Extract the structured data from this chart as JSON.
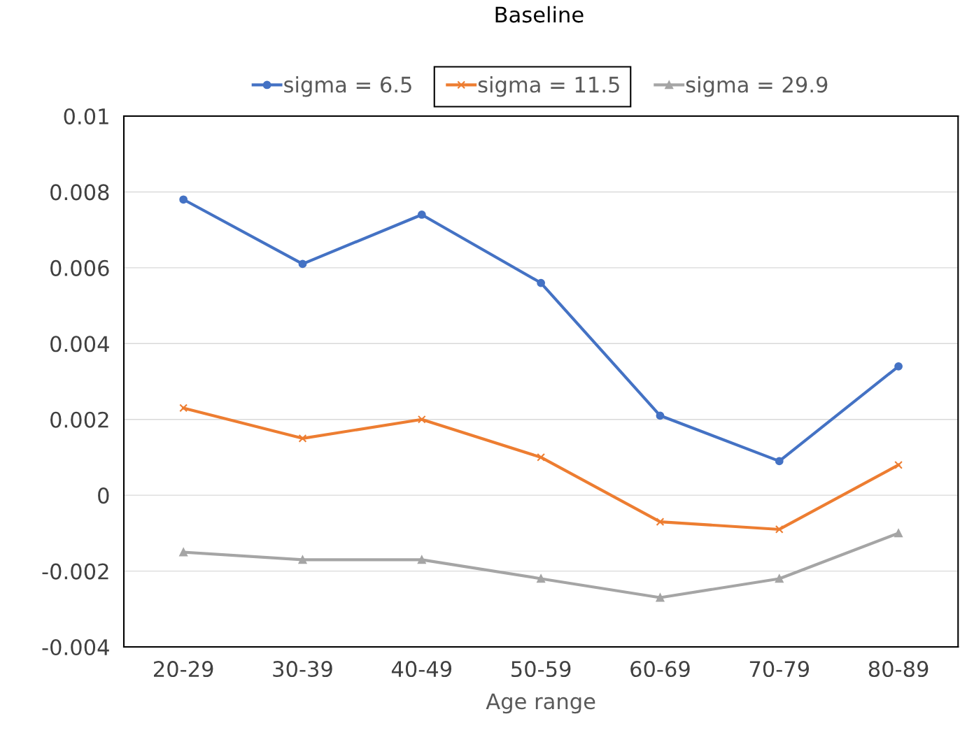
{
  "chart_data": {
    "type": "line",
    "title": "Baseline",
    "xlabel": "Age range",
    "categories": [
      "20-29",
      "30-39",
      "40-49",
      "50-59",
      "60-69",
      "70-79",
      "80-89"
    ],
    "series": [
      {
        "name": "sigma = 6.5",
        "color": "#4472c4",
        "marker": "circle",
        "values": [
          0.0078,
          0.0061,
          0.0074,
          0.0056,
          0.0021,
          0.0009,
          0.0034
        ]
      },
      {
        "name": "sigma = 11.5",
        "color": "#ed7d31",
        "marker": "cross",
        "values": [
          0.0023,
          0.0015,
          0.002,
          0.001,
          -0.0007,
          -0.0009,
          0.0008
        ]
      },
      {
        "name": "sigma = 29.9",
        "color": "#a5a5a5",
        "marker": "triangle",
        "values": [
          -0.0015,
          -0.0017,
          -0.0017,
          -0.0022,
          -0.0027,
          -0.0022,
          -0.001
        ]
      }
    ],
    "ylim": [
      -0.004,
      0.01
    ],
    "yticks": [
      -0.004,
      -0.002,
      0,
      0.002,
      0.004,
      0.006,
      0.008,
      0.01
    ],
    "grid": "y",
    "legend": "top",
    "line_style": "solid"
  }
}
